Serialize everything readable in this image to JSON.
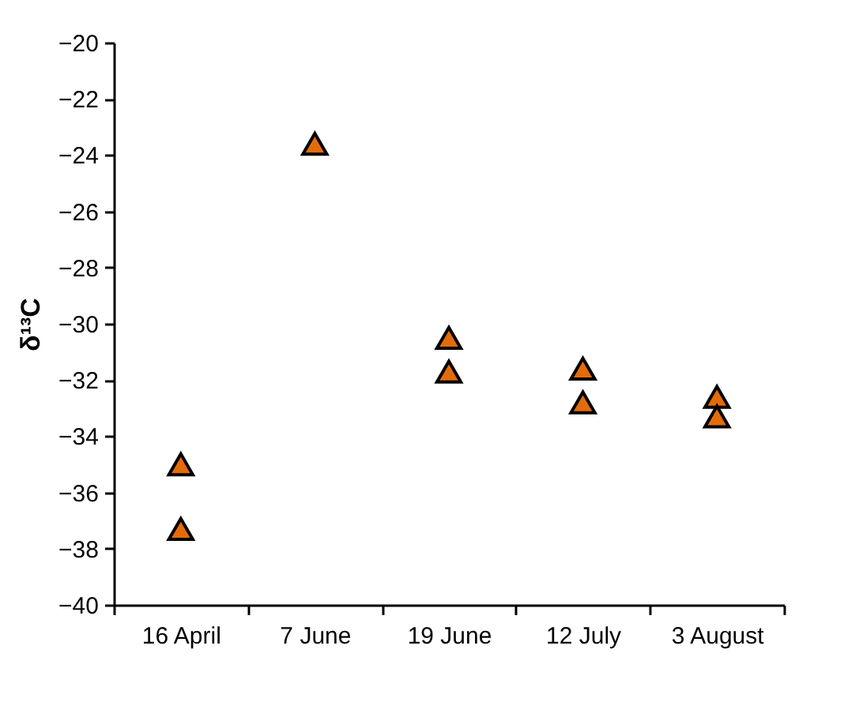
{
  "chart_data": {
    "type": "scatter",
    "ylabel": "δ¹³C",
    "categories": [
      "16 April",
      "7 June",
      "19 June",
      "12 July",
      "3 August"
    ],
    "series": [
      {
        "color": "#e36c0a",
        "x": [
          "16 April",
          "16 April",
          "7 June",
          "19 June",
          "19 June",
          "12 July",
          "12 July",
          "3 August",
          "3 August"
        ],
        "values": [
          -35.0,
          -37.3,
          -23.6,
          -30.5,
          -31.7,
          -31.6,
          -32.8,
          -32.6,
          -33.3
        ]
      }
    ],
    "ylim": [
      -40,
      -20
    ],
    "yticks": [
      -40,
      -38,
      -36,
      -34,
      -32,
      -30,
      -28,
      -26,
      -24,
      -22,
      -20
    ],
    "marker": "triangle",
    "grid": false
  }
}
